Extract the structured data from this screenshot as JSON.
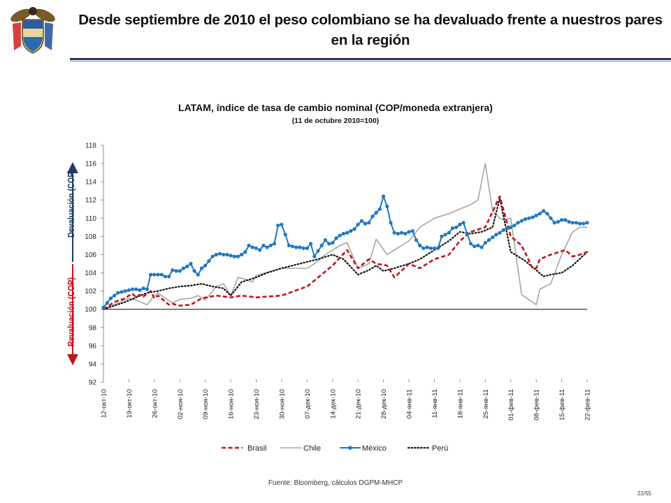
{
  "slide": {
    "title": "Desde septiembre de 2010 el peso colombiano se ha devaluado frente a nuestros pares en la región",
    "source": "Fuente: Bloomberg, cálculos DGPM-MHCP",
    "page": "22/55"
  },
  "chart_data": {
    "type": "line",
    "title": "LATAM, índice de tasa de cambio nominal (COP/moneda extranjera)",
    "subtitle": "(11 de octubre 2010=100)",
    "ylim": [
      92,
      118
    ],
    "yticks": [
      92,
      94,
      96,
      98,
      100,
      102,
      104,
      106,
      108,
      110,
      112,
      114,
      116,
      118
    ],
    "x_ticklabels": [
      "12-окт-10",
      "19-окт-10",
      "26-окт-10",
      "02-ноя-10",
      "09-ноя-10",
      "16-ноя-10",
      "23-ноя-10",
      "30-ноя-10",
      "07-дек-10",
      "14-дек-10",
      "21-дек-10",
      "28-дек-10",
      "04-янв-11",
      "11-янв-11",
      "18-янв-11",
      "25-янв-11",
      "01-фев-11",
      "08-фев-11",
      "15-фев-11",
      "22-фев-11"
    ],
    "x_day_range": [
      0,
      133
    ],
    "reference_line": 100,
    "annotations": {
      "devaluation": "Devaluación (COP)",
      "revaluation": "Revaluación (COP)"
    },
    "series": [
      {
        "name": "Brasil",
        "color": "#c0141c",
        "style": "dashed",
        "x": [
          0,
          3,
          6,
          7,
          8,
          9,
          10,
          11,
          13,
          14,
          15,
          18,
          19,
          21,
          24,
          27,
          31,
          35,
          38,
          42,
          49,
          56,
          63,
          67,
          70,
          73,
          75,
          78,
          80,
          84,
          87,
          91,
          95,
          98,
          101,
          105,
          109,
          112,
          115,
          118,
          119,
          120,
          123,
          127,
          129,
          131,
          133
        ],
        "y": [
          100,
          100.8,
          101.2,
          101.5,
          101.7,
          101.3,
          101.6,
          101.4,
          102,
          101.2,
          101.5,
          100.5,
          100.6,
          100.4,
          100.5,
          101.2,
          101.5,
          101.3,
          101.5,
          101.3,
          101.5,
          102.5,
          104.8,
          106.5,
          104.5,
          105.5,
          105,
          104.8,
          103.5,
          105,
          104.5,
          105.5,
          106,
          107.5,
          108.5,
          109,
          112.4,
          108,
          107,
          104.5,
          104.5,
          105.5,
          106,
          106.5,
          105.8,
          106,
          106.3
        ]
      },
      {
        "name": "Chile",
        "color": "#a6a6a6",
        "style": "solid",
        "x": [
          0,
          7,
          9,
          12,
          14,
          15,
          17,
          19,
          21,
          24,
          26,
          28,
          31,
          33,
          35,
          37,
          39,
          41,
          42,
          49,
          56,
          58,
          61,
          63,
          65,
          67,
          70,
          73,
          75,
          78,
          80,
          84,
          87,
          91,
          95,
          98,
          101,
          103,
          105,
          107,
          109,
          110,
          112,
          115,
          119,
          120,
          123,
          126,
          129,
          131,
          133
        ],
        "y": [
          100,
          101.2,
          101,
          100.5,
          101.5,
          101.8,
          101.2,
          100.7,
          101.1,
          101.2,
          101.5,
          101,
          102.5,
          102.8,
          101.5,
          103.5,
          103.3,
          103,
          103.7,
          104.5,
          104.5,
          105,
          106,
          106.5,
          107,
          107.3,
          104.5,
          105,
          107.7,
          106,
          106.5,
          107.5,
          109,
          110,
          110.5,
          111,
          111.5,
          112,
          116,
          110.8,
          110,
          109.8,
          110,
          101.6,
          100.5,
          102.2,
          102.8,
          106,
          108.5,
          109,
          109
        ]
      },
      {
        "name": "México",
        "color": "#1f77c4",
        "style": "solid-marker",
        "x": [
          0,
          1,
          2,
          3,
          4,
          5,
          6,
          7,
          8,
          9,
          10,
          11,
          12,
          13,
          14,
          15,
          16,
          17,
          18,
          19,
          20,
          21,
          22,
          23,
          24,
          25,
          26,
          27,
          28,
          29,
          30,
          31,
          32,
          33,
          34,
          35,
          36,
          37,
          38,
          39,
          40,
          41,
          42,
          43,
          44,
          45,
          46,
          47,
          48,
          49,
          50,
          51,
          52,
          53,
          54,
          55,
          56,
          57,
          58,
          59,
          60,
          61,
          62,
          63,
          64,
          65,
          66,
          67,
          68,
          69,
          70,
          71,
          72,
          73,
          74,
          75,
          76,
          77,
          78,
          79,
          80,
          81,
          82,
          83,
          84,
          85,
          86,
          87,
          88,
          89,
          90,
          91,
          92,
          93,
          94,
          95,
          96,
          97,
          98,
          99,
          100,
          101,
          102,
          103,
          104,
          105,
          106,
          107,
          108,
          109,
          110,
          111,
          112,
          113,
          114,
          115,
          116,
          117,
          118,
          119,
          120,
          121,
          122,
          123,
          124,
          125,
          126,
          127,
          128,
          129,
          130,
          131,
          132,
          133
        ],
        "y": [
          100.2,
          100.7,
          101.2,
          101.5,
          101.8,
          101.9,
          102,
          102.1,
          102.2,
          102.2,
          102.1,
          102.3,
          102.2,
          103.8,
          103.8,
          103.8,
          103.8,
          103.6,
          103.6,
          104.3,
          104.2,
          104.2,
          104.5,
          104.7,
          105,
          104.2,
          103.8,
          104.5,
          104.8,
          105.3,
          105.8,
          106,
          106.1,
          106,
          106,
          105.9,
          105.8,
          105.8,
          106,
          106.3,
          107,
          106.8,
          106.7,
          106.5,
          107,
          106.8,
          107,
          107.2,
          109.2,
          109.3,
          108.2,
          107,
          106.9,
          106.8,
          106.8,
          106.7,
          106.7,
          107.2,
          105.8,
          106.4,
          107,
          107.6,
          107.2,
          107.3,
          107.8,
          108.1,
          108.3,
          108.4,
          108.6,
          108.8,
          109.3,
          109.7,
          109.4,
          109.5,
          110.2,
          110.6,
          111,
          112.4,
          111.3,
          109.5,
          108.4,
          108.3,
          108.4,
          108.3,
          108.5,
          108.6,
          107.6,
          107,
          106.7,
          106.8,
          106.7,
          106.7,
          106.7,
          108,
          108.2,
          108.4,
          108.9,
          109,
          109.3,
          109.5,
          108.3,
          107.2,
          106.9,
          107,
          106.8,
          107.3,
          107.6,
          107.9,
          108.2,
          108.4,
          108.7,
          108.9,
          109,
          109.2,
          109.5,
          109.7,
          109.9,
          110,
          110.1,
          110.3,
          110.5,
          110.8,
          110.5,
          110,
          109.5,
          109.6,
          109.8,
          109.8,
          109.6,
          109.5,
          109.5,
          109.4,
          109.4,
          109.5
        ]
      },
      {
        "name": "Perú",
        "color": "#111111",
        "style": "dotted",
        "x": [
          0,
          3,
          6,
          9,
          12,
          15,
          18,
          21,
          24,
          27,
          30,
          33,
          35,
          38,
          42,
          45,
          49,
          52,
          56,
          59,
          63,
          66,
          70,
          73,
          75,
          77,
          80,
          84,
          87,
          91,
          95,
          98,
          101,
          104,
          107,
          109,
          112,
          116,
          119,
          121,
          123,
          126,
          129,
          133
        ],
        "y": [
          100,
          100.4,
          100.8,
          101.3,
          101.8,
          102,
          102.3,
          102.5,
          102.6,
          102.8,
          102.5,
          102.3,
          101.5,
          103,
          103.5,
          104,
          104.5,
          104.8,
          105.2,
          105.5,
          106,
          105.5,
          103.8,
          104.3,
          104.8,
          104.2,
          104.5,
          105,
          105.5,
          106.5,
          107.5,
          108.5,
          108.3,
          108.5,
          109,
          112.2,
          106.3,
          105.3,
          104.3,
          103.6,
          103.8,
          104,
          104.8,
          106.3
        ]
      }
    ]
  }
}
